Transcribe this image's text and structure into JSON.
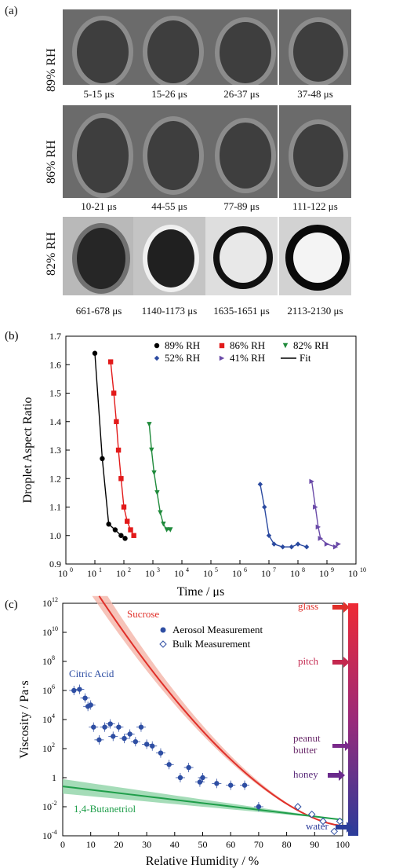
{
  "panel_a": {
    "label": "(a)",
    "rows": [
      {
        "rh": "89% RH",
        "captions": [
          "5-15 μs",
          "15-26 μs",
          "26-37 μs",
          "37-48 μs"
        ]
      },
      {
        "rh": "86% RH",
        "captions": [
          "10-21 μs",
          "44-55 μs",
          "77-89 μs",
          "111-122 μs"
        ]
      },
      {
        "rh": "82% RH",
        "captions": [
          "661-678 μs",
          "1140-1173 μs",
          "1635-1651 μs",
          "2113-2130 μs"
        ]
      }
    ]
  },
  "chart_data": [
    {
      "type": "scatter",
      "panel_label": "(b)",
      "xlabel": "Time / μs",
      "ylabel": "Droplet Aspect Ratio",
      "x_scale": "log",
      "xlim": [
        1,
        10000000000.0
      ],
      "ylim": [
        0.9,
        1.7
      ],
      "x_tick_exponents": [
        "0",
        "1",
        "2",
        "3",
        "4",
        "5",
        "6",
        "7",
        "8",
        "9",
        "10"
      ],
      "y_ticks": [
        "0.9",
        "1.0",
        "1.1",
        "1.2",
        "1.3",
        "1.4",
        "1.5",
        "1.6",
        "1.7"
      ],
      "legend_position": "top-right",
      "series": [
        {
          "name": "89% RH",
          "color": "#000000",
          "marker": "circle",
          "points": [
            [
              10,
              1.64
            ],
            [
              18,
              1.27
            ],
            [
              30,
              1.04
            ],
            [
              50,
              1.02
            ],
            [
              80,
              1.0
            ],
            [
              110,
              0.99
            ]
          ]
        },
        {
          "name": "86% RH",
          "color": "#e21a1a",
          "marker": "square",
          "points": [
            [
              35,
              1.61
            ],
            [
              45,
              1.5
            ],
            [
              55,
              1.4
            ],
            [
              65,
              1.3
            ],
            [
              80,
              1.2
            ],
            [
              100,
              1.1
            ],
            [
              130,
              1.05
            ],
            [
              170,
              1.02
            ],
            [
              220,
              1.0
            ]
          ]
        },
        {
          "name": "82% RH",
          "color": "#1f8a3b",
          "marker": "triangle-down",
          "points": [
            [
              750,
              1.39
            ],
            [
              900,
              1.3
            ],
            [
              1100,
              1.22
            ],
            [
              1400,
              1.15
            ],
            [
              1800,
              1.08
            ],
            [
              2300,
              1.04
            ],
            [
              3000,
              1.02
            ],
            [
              4000,
              1.02
            ]
          ]
        },
        {
          "name": "52% RH",
          "color": "#2b4aa0",
          "marker": "diamond",
          "points": [
            [
              5000000.0,
              1.18
            ],
            [
              7000000.0,
              1.1
            ],
            [
              10000000.0,
              1.0
            ],
            [
              15000000.0,
              0.97
            ],
            [
              30000000.0,
              0.96
            ],
            [
              60000000.0,
              0.96
            ],
            [
              100000000.0,
              0.97
            ],
            [
              200000000.0,
              0.96
            ]
          ]
        },
        {
          "name": "41% RH",
          "color": "#6a4aa8",
          "marker": "triangle-right",
          "points": [
            [
              300000000.0,
              1.19
            ],
            [
              400000000.0,
              1.1
            ],
            [
              500000000.0,
              1.03
            ],
            [
              600000000.0,
              0.99
            ],
            [
              1000000000.0,
              0.97
            ],
            [
              2000000000.0,
              0.96
            ],
            [
              2500000000.0,
              0.97
            ]
          ]
        }
      ],
      "fit_label": "Fit"
    },
    {
      "type": "scatter",
      "panel_label": "(c)",
      "xlabel": "Relative Humidity / %",
      "ylabel": "Viscosity / Pa·s",
      "y_scale": "log",
      "xlim": [
        0,
        100
      ],
      "ylim": [
        0.0001,
        1000000000000.0
      ],
      "x_ticks": [
        "0",
        "10",
        "20",
        "30",
        "40",
        "50",
        "60",
        "70",
        "80",
        "90",
        "100"
      ],
      "y_tick_exponents": [
        "12",
        "10",
        "8",
        "6",
        "4",
        "2",
        "0",
        "-2",
        "-4"
      ],
      "y_tick_zero_label": "1",
      "legend": [
        "Aerosol Measurement",
        "Bulk Measurement"
      ],
      "curve_labels": {
        "sucrose": "Sucrose",
        "citric": "Citric Acid",
        "butanetriol": "1,4-Butanetriol"
      },
      "aerosol_points": [
        [
          4,
          1000000.0
        ],
        [
          6,
          1200000.0
        ],
        [
          8,
          300000.0
        ],
        [
          9,
          80000.0
        ],
        [
          10,
          100000.0
        ],
        [
          11,
          3000.0
        ],
        [
          13,
          400.0
        ],
        [
          15,
          3000.0
        ],
        [
          17,
          5000.0
        ],
        [
          18,
          700.0
        ],
        [
          20,
          3000.0
        ],
        [
          22,
          500.0
        ],
        [
          24,
          1000.0
        ],
        [
          26,
          300.0
        ],
        [
          28,
          3000.0
        ],
        [
          30,
          200.0
        ],
        [
          32,
          150.0
        ],
        [
          35,
          50
        ],
        [
          38,
          8
        ],
        [
          42,
          1
        ],
        [
          45,
          5
        ],
        [
          49,
          0.5
        ],
        [
          50,
          1
        ],
        [
          55,
          0.4
        ],
        [
          60,
          0.3
        ],
        [
          65,
          0.3
        ],
        [
          70,
          0.01
        ]
      ],
      "bulk_points": [
        [
          84,
          0.01
        ],
        [
          89,
          0.003
        ],
        [
          93,
          0.001
        ],
        [
          97,
          0.0002
        ],
        [
          99,
          0.001
        ]
      ],
      "scale_labels": [
        "glass",
        "pitch",
        "peanut butter",
        "honey",
        "water"
      ],
      "colors": {
        "sucrose": "#e0302a",
        "sucrose_band": "#f4b4a8",
        "butanetriol": "#1f9e4a",
        "butanetriol_band": "#8fd3a6",
        "points": "#2e4ea3"
      }
    }
  ]
}
